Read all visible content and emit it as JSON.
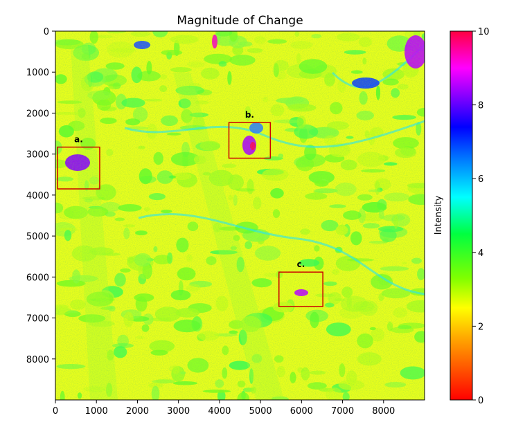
{
  "chart_data": {
    "type": "heatmap",
    "title": "Magnitude of Change",
    "xlabel": "",
    "ylabel": "",
    "xlim": [
      0,
      9000
    ],
    "ylim": [
      9000,
      0
    ],
    "x_ticks": [
      0,
      1000,
      2000,
      3000,
      4000,
      5000,
      6000,
      7000,
      8000
    ],
    "y_ticks": [
      0,
      1000,
      2000,
      3000,
      4000,
      5000,
      6000,
      7000,
      8000
    ],
    "colorbar": {
      "label": "Intensity",
      "range": [
        0,
        10
      ],
      "ticks": [
        0,
        2,
        4,
        6,
        8,
        10
      ],
      "colormap": "gist_rainbow (red at 0 → yellow → green → cyan → blue → magenta → red at 10)"
    },
    "dominant_values": "mostly 2–4 (yellow/green) across the scene; high values (7–10) along river channels and in the annotated regions",
    "annotations": [
      {
        "label": "a.",
        "x_range": [
          50,
          1080
        ],
        "y_range": [
          2830,
          3850
        ]
      },
      {
        "label": "b.",
        "x_range": [
          4230,
          5240
        ],
        "y_range": [
          2230,
          3100
        ]
      },
      {
        "label": "c.",
        "x_range": [
          5450,
          6520
        ],
        "y_range": [
          5880,
          6720
        ]
      }
    ],
    "annotation_color": "#cc0000"
  }
}
